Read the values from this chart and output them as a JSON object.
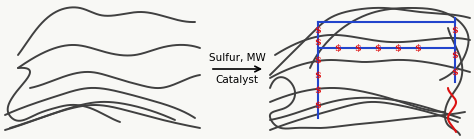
{
  "bg_color": "#f8f8f5",
  "arrow_text_line1": "Sulfur, MW",
  "arrow_text_line2": "Catalyst",
  "chain_color": "#404040",
  "crosslink_color": "#2244cc",
  "sulfur_color": "#dd1111",
  "lw_chain": 1.4,
  "lw_cross": 1.5,
  "font_size_arrow": 7.5,
  "font_size_S": 7.0
}
